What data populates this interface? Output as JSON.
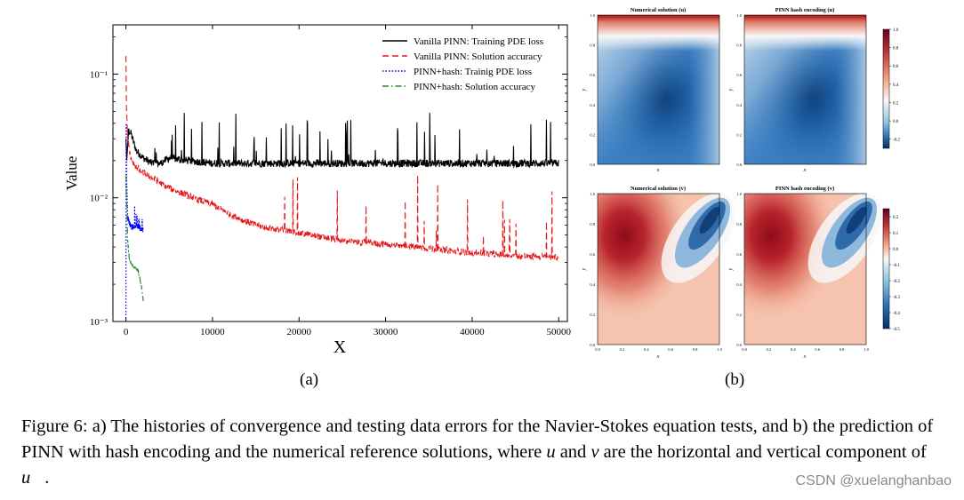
{
  "figure": {
    "sublabel_a": "(a)",
    "sublabel_b": "(b)",
    "caption_parts": [
      "Figure 6: a) The histories of convergence and testing data errors for the Navier-Stokes equation tests, and b) the prediction of PINN with hash encoding and the numerical reference solutions, where ",
      "u",
      " and ",
      "v",
      " are the horizontal and vertical component of ",
      "u⃗",
      "."
    ],
    "watermark": "CSDN @xuelanghanbao"
  },
  "chart_data": [
    {
      "type": "line",
      "panel": "a",
      "xlabel": "X",
      "ylabel": "Value",
      "yscale": "log",
      "xlim": [
        -1500,
        51000
      ],
      "ylim": [
        0.001,
        0.25
      ],
      "xticks": [
        0,
        10000,
        20000,
        30000,
        40000,
        50000
      ],
      "xtick_labels": [
        "0",
        "10000",
        "20000",
        "30000",
        "40000",
        "50000"
      ],
      "yticks": [
        0.001,
        0.01,
        0.1
      ],
      "ytick_labels": [
        "10⁻³",
        "10⁻²",
        "10⁻¹"
      ],
      "legend_position": "top-right",
      "series": [
        {
          "name": "Vanilla PINN: Training PDE loss",
          "color": "#000000",
          "style": "solid",
          "x": [
            0,
            100,
            300,
            600,
            900,
            1200,
            2000,
            3000,
            4000,
            5000,
            7000,
            10000,
            15000,
            20000,
            30000,
            40000,
            50000
          ],
          "values": [
            0.03,
            0.02,
            0.035,
            0.033,
            0.028,
            0.024,
            0.021,
            0.019,
            0.019,
            0.021,
            0.02,
            0.019,
            0.019,
            0.019,
            0.019,
            0.019,
            0.019
          ]
        },
        {
          "name": "Vanilla PINN: Solution accuracy",
          "color": "#e41a1c",
          "style": "dashed",
          "x": [
            0,
            60,
            200,
            500,
            1000,
            2000,
            3000,
            5000,
            7000,
            10000,
            13000,
            15000,
            18000,
            20000,
            25000,
            30000,
            35000,
            40000,
            45000,
            50000
          ],
          "values": [
            0.14,
            0.055,
            0.03,
            0.022,
            0.018,
            0.016,
            0.0145,
            0.012,
            0.0105,
            0.0088,
            0.0068,
            0.006,
            0.0055,
            0.0052,
            0.0045,
            0.0042,
            0.0039,
            0.0036,
            0.0034,
            0.0033
          ]
        },
        {
          "name": "PINN+hash: Trainig PDE loss",
          "color": "#0000ff",
          "style": "dotted",
          "x": [
            0,
            30,
            80,
            200,
            500,
            800,
            1200,
            1600,
            2000
          ],
          "values": [
            0.001,
            0.04,
            0.015,
            0.007,
            0.006,
            0.0058,
            0.006,
            0.0057,
            0.0055
          ]
        },
        {
          "name": "PINN+hash: Solution accuracy",
          "color": "#228b22",
          "style": "dashdot",
          "x": [
            0,
            200,
            400,
            600,
            800,
            1000,
            1400,
            1800,
            2000
          ],
          "values": [
            0.015,
            0.0045,
            0.0032,
            0.003,
            0.0028,
            0.0027,
            0.0026,
            0.0019,
            0.0015
          ]
        }
      ]
    },
    {
      "type": "heatmap",
      "panel": "b",
      "plots": [
        {
          "title": "Numerical solution (u)",
          "field": "u",
          "xlabel": "x",
          "ylabel": "y"
        },
        {
          "title": "PINN hash encoding (u)",
          "field": "u",
          "xlabel": "x",
          "ylabel": "y"
        },
        {
          "title": "Numerical solution (v)",
          "field": "v",
          "xlabel": "x",
          "ylabel": "y"
        },
        {
          "title": "PINN hash encoding (v)",
          "field": "v",
          "xlabel": "x",
          "ylabel": "y"
        }
      ],
      "axis_ticks": [
        "0.0",
        "0.2",
        "0.4",
        "0.6",
        "0.8",
        "1.0"
      ],
      "colorbars": [
        {
          "field": "u",
          "range": [
            -0.3,
            1.0
          ],
          "ticks": [
            "1.0",
            "0.8",
            "0.6",
            "0.4",
            "0.2",
            "0.0",
            "-0.2"
          ],
          "tick_values": [
            1.0,
            0.8,
            0.6,
            0.4,
            0.2,
            0.0,
            -0.2
          ]
        },
        {
          "field": "v",
          "range": [
            -0.5,
            0.25
          ],
          "ticks": [
            "0.2",
            "0.1",
            "0.0",
            "-0.1",
            "-0.2",
            "-0.3",
            "-0.4",
            "-0.5"
          ],
          "tick_values": [
            0.2,
            0.1,
            0.0,
            -0.1,
            -0.2,
            -0.3,
            -0.4,
            -0.5
          ]
        }
      ],
      "colormap": "RdBu_r"
    }
  ]
}
